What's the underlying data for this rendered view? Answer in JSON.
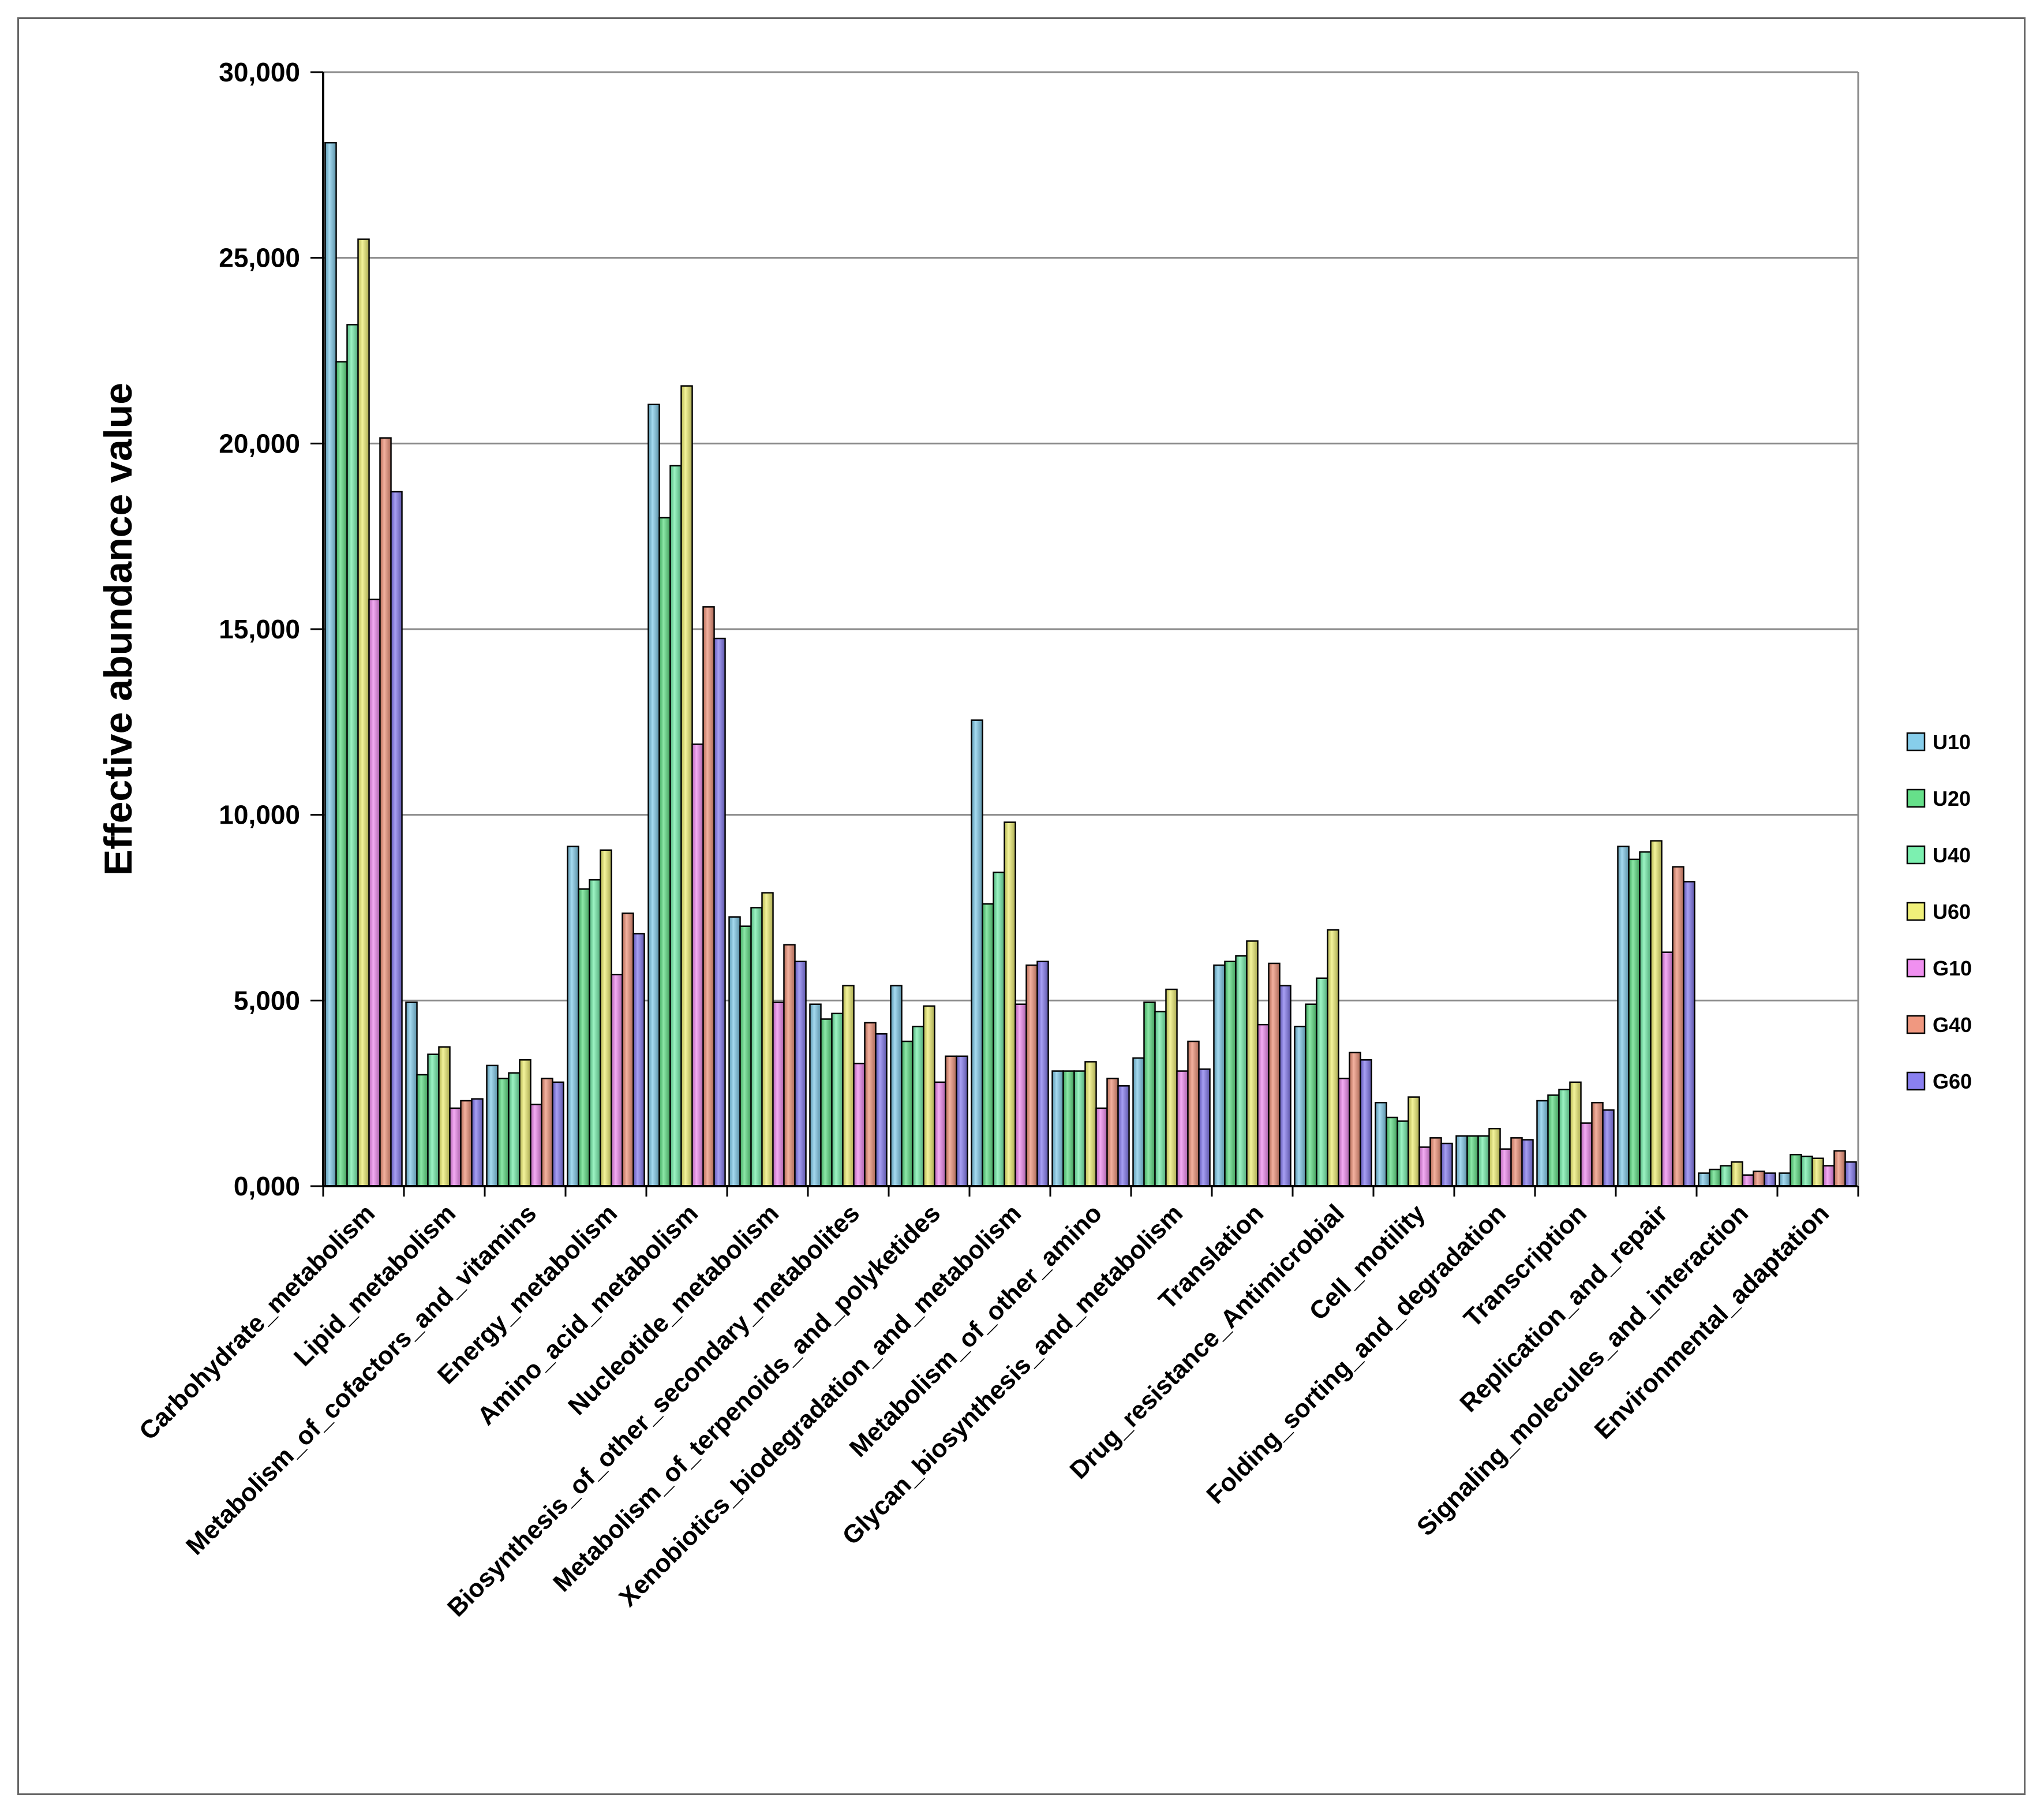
{
  "chart_data": {
    "type": "bar",
    "title": "",
    "xlabel": "",
    "ylabel": "Effective abundance value",
    "ylim": [
      0,
      30000
    ],
    "yticks": [
      {
        "value": 0,
        "label": "0,000"
      },
      {
        "value": 5000,
        "label": "5,000"
      },
      {
        "value": 10000,
        "label": "10,000"
      },
      {
        "value": 15000,
        "label": "15,000"
      },
      {
        "value": 20000,
        "label": "20,000"
      },
      {
        "value": 25000,
        "label": "25,000"
      },
      {
        "value": 30000,
        "label": "30,000"
      }
    ],
    "grid": true,
    "legend_position": "right",
    "categories": [
      "Carbohydrate_metabolism",
      "Lipid_metabolism",
      "Metabolism_of_cofactors_and_vitamins",
      "Energy_metabolism",
      "Amino_acid_metabolism",
      "Nucleotide_metabolism",
      "Biosynthesis_of_other_secondary_metabolites",
      "Metabolism_of_terpenoids_and_polyketides",
      "Xenobiotics_biodegradation_and_metabolism",
      "Metabolism_of_other_amino",
      "Glycan_biosynthesis_and_metabolism",
      "Translation",
      "Drug_resistance_Antimicrobial",
      "Cell_motility",
      "Folding_sorting_and_degradation",
      "Transcription",
      "Replication_and_repair",
      "Signaling_molecules_and_interaction",
      "Environmental_adaptation"
    ],
    "series": [
      {
        "name": "U10",
        "color": "#87ceeb",
        "values": [
          28100,
          4950,
          3250,
          9150,
          21050,
          7250,
          4900,
          5400,
          12550,
          3100,
          3450,
          5950,
          4300,
          2250,
          1350,
          2300,
          9150,
          350,
          350
        ]
      },
      {
        "name": "U20",
        "color": "#66e08a",
        "values": [
          22200,
          3000,
          2900,
          8000,
          18000,
          7000,
          4500,
          3900,
          7600,
          3100,
          4950,
          6050,
          4900,
          1850,
          1350,
          2450,
          8800,
          450,
          850
        ]
      },
      {
        "name": "U40",
        "color": "#7cf0b0",
        "values": [
          23200,
          3550,
          3050,
          8250,
          19400,
          7500,
          4650,
          4300,
          8450,
          3100,
          4700,
          6200,
          5600,
          1750,
          1350,
          2600,
          9000,
          550,
          800
        ]
      },
      {
        "name": "U60",
        "color": "#f0f07a",
        "values": [
          25500,
          3750,
          3400,
          9050,
          21550,
          7900,
          5400,
          4850,
          9800,
          3350,
          5300,
          6600,
          6900,
          2400,
          1550,
          2800,
          9300,
          650,
          750
        ]
      },
      {
        "name": "G10",
        "color": "#f090f0",
        "values": [
          15800,
          2100,
          2200,
          5700,
          11900,
          4950,
          3300,
          2800,
          4900,
          2100,
          3100,
          4350,
          2900,
          1050,
          1000,
          1700,
          6300,
          300,
          550
        ]
      },
      {
        "name": "G40",
        "color": "#f09880",
        "values": [
          20150,
          2300,
          2900,
          7350,
          15600,
          6500,
          4400,
          3500,
          5950,
          2900,
          3900,
          6000,
          3600,
          1300,
          1300,
          2250,
          8600,
          400,
          950
        ]
      },
      {
        "name": "G60",
        "color": "#8a80f0",
        "values": [
          18700,
          2350,
          2800,
          6800,
          14750,
          6050,
          4100,
          3500,
          6050,
          2700,
          3150,
          5400,
          3400,
          1150,
          1250,
          2050,
          8200,
          350,
          650
        ]
      }
    ]
  }
}
